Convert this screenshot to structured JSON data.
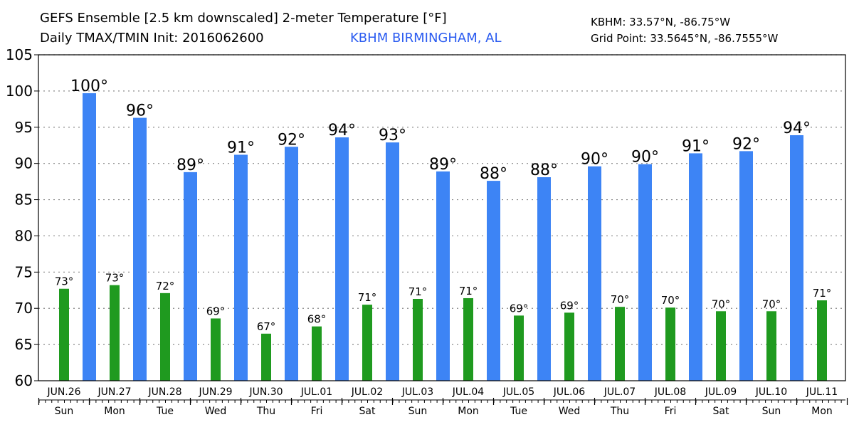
{
  "header": {
    "title_line1": "GEFS Ensemble [2.5 km downscaled] 2-meter Temperature [°F]",
    "title_line2": "Daily TMAX/TMIN Init: 2016062600",
    "station_name": "KBHM BIRMINGHAM, AL",
    "station_coords": "KBHM: 33.57°N, -86.75°W",
    "grid_point": "Grid Point: 33.5645°N, -86.7555°W"
  },
  "colors": {
    "tmax": "#3d84f5",
    "tmin": "#1f9a1f",
    "station_name": "#2a5bf0",
    "grid": "#888888"
  },
  "chart_data": {
    "type": "bar",
    "title": "GEFS Ensemble [2.5 km downscaled] 2-meter Temperature [°F]",
    "subtitle": "Daily TMAX/TMIN Init: 2016062600",
    "ylim": [
      60,
      105
    ],
    "yticks": [
      60,
      65,
      70,
      75,
      80,
      85,
      90,
      95,
      100,
      105
    ],
    "grid": true,
    "categories": [
      "JUN.26",
      "JUN.27",
      "JUN.28",
      "JUN.29",
      "JUN.30",
      "JUL.01",
      "JUL.02",
      "JUL.03",
      "JUL.04",
      "JUL.05",
      "JUL.06",
      "JUL.07",
      "JUL.08",
      "JUL.09",
      "JUL.10",
      "JUL.11"
    ],
    "days": [
      "Sun",
      "Mon",
      "Tue",
      "Wed",
      "Thu",
      "Fri",
      "Sat",
      "Sun",
      "Mon",
      "Tue",
      "Wed",
      "Thu",
      "Fri",
      "Sat",
      "Sun",
      "Mon"
    ],
    "tmin": {
      "values": [
        72.7,
        73.2,
        72.1,
        68.6,
        66.5,
        67.5,
        70.5,
        71.3,
        71.4,
        69.0,
        69.4,
        70.2,
        70.1,
        69.6,
        69.6,
        71.1
      ],
      "labels": [
        "73°",
        "73°",
        "72°",
        "69°",
        "67°",
        "68°",
        "71°",
        "71°",
        "71°",
        "69°",
        "69°",
        "70°",
        "70°",
        "70°",
        "70°",
        "71°"
      ]
    },
    "tmax": {
      "values": [
        99.7,
        96.3,
        88.8,
        91.2,
        92.3,
        93.6,
        92.9,
        88.9,
        87.6,
        88.1,
        89.6,
        89.9,
        91.4,
        91.7,
        93.9
      ],
      "labels": [
        "100°",
        "96°",
        "89°",
        "91°",
        "92°",
        "94°",
        "93°",
        "89°",
        "88°",
        "88°",
        "90°",
        "90°",
        "91°",
        "92°",
        "94°"
      ]
    }
  }
}
